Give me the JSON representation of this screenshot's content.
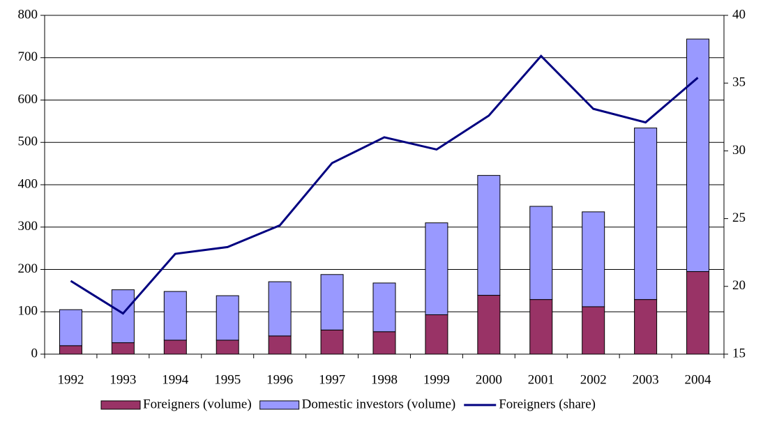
{
  "chart_data": {
    "type": "bar",
    "categories": [
      "1992",
      "1993",
      "1994",
      "1995",
      "1996",
      "1997",
      "1998",
      "1999",
      "2000",
      "2001",
      "2002",
      "2003",
      "2004"
    ],
    "series": [
      {
        "name": "Foreigners (volume)",
        "color": "#993366",
        "values": [
          20,
          27,
          33,
          33,
          43,
          57,
          53,
          93,
          139,
          129,
          112,
          129,
          195
        ]
      },
      {
        "name": "Domestic investors (volume)",
        "color": "#9999ff",
        "values": [
          85,
          125,
          115,
          105,
          128,
          131,
          115,
          217,
          283,
          220,
          224,
          405,
          549
        ]
      },
      {
        "name": "Foreigners (share)",
        "color": "#000080",
        "type": "line",
        "axis": "y2",
        "values": [
          20.4,
          18.0,
          22.4,
          22.9,
          24.5,
          29.1,
          31.0,
          30.1,
          32.6,
          37.0,
          33.1,
          32.1,
          35.4
        ]
      }
    ],
    "stacked": true,
    "ylim": [
      0,
      800
    ],
    "yticks": [
      0,
      100,
      200,
      300,
      400,
      500,
      600,
      700,
      800
    ],
    "y2lim": [
      15,
      40
    ],
    "y2ticks": [
      15,
      20,
      25,
      30,
      35,
      40
    ],
    "grid": true,
    "legend": "bottom"
  }
}
